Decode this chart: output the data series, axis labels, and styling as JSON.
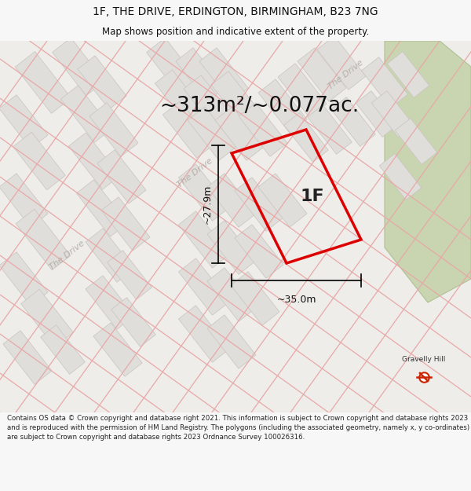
{
  "title": "1F, THE DRIVE, ERDINGTON, BIRMINGHAM, B23 7NG",
  "subtitle": "Map shows position and indicative extent of the property.",
  "area_text": "~313m²/~0.077ac.",
  "label_1F": "1F",
  "dim_width": "~35.0m",
  "dim_height": "~27.9m",
  "footer": "Contains OS data © Crown copyright and database right 2021. This information is subject to Crown copyright and database rights 2023 and is reproduced with the permission of HM Land Registry. The polygons (including the associated geometry, namely x, y co-ordinates) are subject to Crown copyright and database rights 2023 Ordnance Survey 100026316.",
  "gravelly_hill_label": "Gravelly Hill",
  "bg_color": "#f7f7f7",
  "map_bg": "#eeede9",
  "road_color": "#e8a8a8",
  "parcel_fill": "#e0deda",
  "parcel_edge": "#c8c4c0",
  "red_plot_color": "#dd0000",
  "green_fill": "#c8d5b0",
  "green_edge": "#b0c095",
  "title_fontsize": 10,
  "subtitle_fontsize": 8.5,
  "area_fontsize": 19,
  "label_fontsize": 16,
  "dim_fontsize": 9,
  "footer_fontsize": 6.2,
  "road_label_color": "#b0aba5",
  "road_label_fontsize": 8
}
